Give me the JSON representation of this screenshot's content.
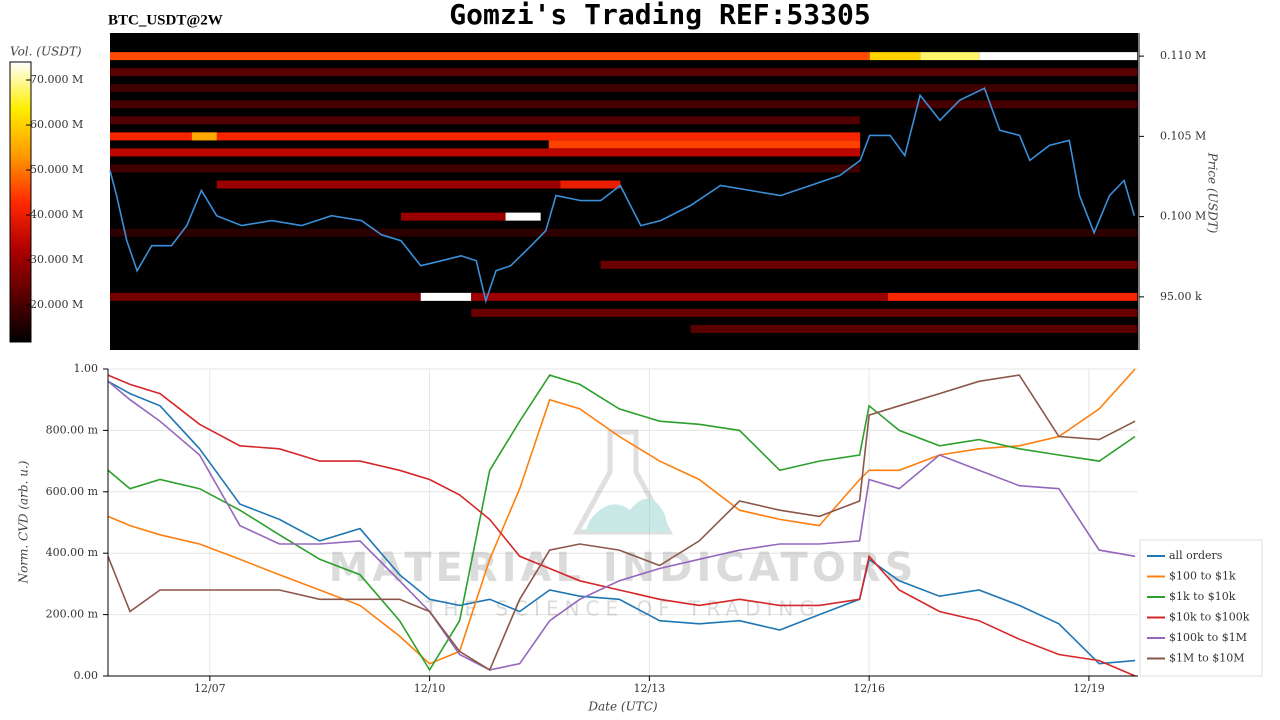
{
  "chart_data": [
    {
      "type": "heatmap",
      "title": "Gomzi's Trading REF:53305",
      "subtitle": "BTC_USDT@2W",
      "ylabel": "Price (USDT)",
      "colorbar_label": "Vol. (USDT)",
      "colormap": [
        "#000000",
        "#5a0000",
        "#b00000",
        "#ff2a00",
        "#ff9a00",
        "#ffee00",
        "#ffffff"
      ],
      "clim": [
        11800000,
        74000000
      ],
      "cticks": [
        {
          "value": 20000000,
          "label": "20.000 M"
        },
        {
          "value": 30000000,
          "label": "30.000 M"
        },
        {
          "value": 40000000,
          "label": "40.000 M"
        },
        {
          "value": 50000000,
          "label": "50.000 M"
        },
        {
          "value": 60000000,
          "label": "60.000 M"
        },
        {
          "value": 70000000,
          "label": "70.000 M"
        }
      ],
      "xlim": [
        5.61,
        19.67
      ],
      "ylim": [
        91690,
        111440
      ],
      "yticks": [
        {
          "value": 95000,
          "label": "95.00 k"
        },
        {
          "value": 100000,
          "label": "0.100 M"
        },
        {
          "value": 105000,
          "label": "0.105 M"
        },
        {
          "value": 110000,
          "label": "0.110 M"
        }
      ],
      "levels": [
        {
          "price": 110000,
          "x0": 5.61,
          "x1": 16.0,
          "volume": 46000000
        },
        {
          "price": 110000,
          "x0": 16.0,
          "x1": 16.69,
          "volume": 60000000
        },
        {
          "price": 110000,
          "x0": 16.69,
          "x1": 17.5,
          "volume": 68000000
        },
        {
          "price": 110000,
          "x0": 17.5,
          "x1": 19.66,
          "volume": 74000000
        },
        {
          "price": 109000,
          "x0": 5.61,
          "x1": 19.66,
          "volume": 22000000
        },
        {
          "price": 108000,
          "x0": 5.61,
          "x1": 19.66,
          "volume": 19000000
        },
        {
          "price": 107000,
          "x0": 5.61,
          "x1": 19.66,
          "volume": 20000000
        },
        {
          "price": 106000,
          "x0": 5.61,
          "x1": 15.87,
          "volume": 21000000
        },
        {
          "price": 105000,
          "x0": 5.61,
          "x1": 15.87,
          "volume": 42000000
        },
        {
          "price": 105000,
          "x0": 6.73,
          "x1": 7.07,
          "volume": 55000000
        },
        {
          "price": 104500,
          "x0": 11.61,
          "x1": 15.87,
          "volume": 45000000
        },
        {
          "price": 104000,
          "x0": 5.61,
          "x1": 15.87,
          "volume": 34000000
        },
        {
          "price": 103000,
          "x0": 5.61,
          "x1": 15.87,
          "volume": 19000000
        },
        {
          "price": 102000,
          "x0": 7.07,
          "x1": 11.77,
          "volume": 30000000
        },
        {
          "price": 102000,
          "x0": 11.77,
          "x1": 12.59,
          "volume": 40000000
        },
        {
          "price": 100000,
          "x0": 9.59,
          "x1": 11.02,
          "volume": 30000000
        },
        {
          "price": 100000,
          "x0": 11.02,
          "x1": 11.5,
          "volume": 74000000
        },
        {
          "price": 99000,
          "x0": 5.61,
          "x1": 19.66,
          "volume": 17000000
        },
        {
          "price": 97000,
          "x0": 12.32,
          "x1": 19.66,
          "volume": 24000000
        },
        {
          "price": 95000,
          "x0": 5.61,
          "x1": 9.86,
          "volume": 25000000
        },
        {
          "price": 95000,
          "x0": 9.86,
          "x1": 10.55,
          "volume": 74000000
        },
        {
          "price": 95000,
          "x0": 10.55,
          "x1": 16.25,
          "volume": 30000000
        },
        {
          "price": 95000,
          "x0": 16.25,
          "x1": 19.66,
          "volume": 42000000
        },
        {
          "price": 94000,
          "x0": 10.55,
          "x1": 19.66,
          "volume": 24000000
        },
        {
          "price": 93000,
          "x0": 13.55,
          "x1": 19.66,
          "volume": 22000000
        }
      ],
      "price_line": {
        "color": "#3a8fd8",
        "x": [
          5.61,
          5.7,
          5.84,
          5.98,
          6.18,
          6.45,
          6.66,
          6.86,
          7.07,
          7.41,
          7.82,
          8.23,
          8.64,
          9.05,
          9.32,
          9.59,
          9.86,
          10.14,
          10.41,
          10.62,
          10.75,
          10.89,
          11.09,
          11.37,
          11.57,
          11.71,
          12.05,
          12.32,
          12.59,
          12.87,
          13.14,
          13.55,
          13.96,
          14.37,
          14.78,
          15.19,
          15.59,
          15.87,
          16.0,
          16.28,
          16.48,
          16.69,
          16.96,
          17.23,
          17.57,
          17.78,
          18.05,
          18.19,
          18.46,
          18.73,
          18.87,
          19.07,
          19.28,
          19.48,
          19.62
        ],
        "values": [
          102875,
          101310,
          98500,
          96625,
          98190,
          98190,
          99440,
          101625,
          100060,
          99440,
          99750,
          99440,
          100060,
          99750,
          98875,
          98500,
          96940,
          97250,
          97560,
          97250,
          94750,
          96625,
          96940,
          98190,
          99125,
          101310,
          101000,
          101000,
          101940,
          99440,
          99750,
          100690,
          101940,
          101625,
          101310,
          101940,
          102560,
          103500,
          105060,
          105060,
          103810,
          107560,
          106000,
          107250,
          108000,
          105375,
          105060,
          103500,
          104440,
          104750,
          101310,
          99000,
          101310,
          102250,
          100060
        ]
      }
    },
    {
      "type": "line",
      "ylabel": "Norm. CVD (arb. u.)",
      "xlabel": "Date (UTC)",
      "xlim": [
        5.61,
        19.67
      ],
      "ylim": [
        0,
        1
      ],
      "xticks": [
        {
          "value": 7,
          "label": "12/07"
        },
        {
          "value": 10,
          "label": "12/10"
        },
        {
          "value": 13,
          "label": "12/13"
        },
        {
          "value": 16,
          "label": "12/16"
        },
        {
          "value": 19,
          "label": "12/19"
        }
      ],
      "yticks": [
        {
          "value": 0,
          "label": "0.00"
        },
        {
          "value": 0.2,
          "label": "200.00 m"
        },
        {
          "value": 0.4,
          "label": "400.00 m"
        },
        {
          "value": 0.6,
          "label": "600.00 m"
        },
        {
          "value": 0.8,
          "label": "800.00 m"
        },
        {
          "value": 1,
          "label": "1.00"
        }
      ],
      "grid": true,
      "legend": "lower right",
      "watermark": [
        "MATERIAL INDICATORS",
        "THE SCIENCE OF TRADING"
      ],
      "x": [
        5.61,
        5.91,
        6.32,
        6.86,
        7.41,
        7.95,
        8.5,
        9.05,
        9.59,
        10.0,
        10.41,
        10.82,
        11.23,
        11.64,
        12.05,
        12.59,
        13.14,
        13.68,
        14.23,
        14.78,
        15.32,
        15.87,
        16.0,
        16.41,
        16.96,
        17.5,
        18.05,
        18.59,
        19.14,
        19.63
      ],
      "series": [
        {
          "name": "all orders",
          "color": "#1f77b4",
          "values": [
            0.96,
            0.92,
            0.88,
            0.74,
            0.56,
            0.51,
            0.44,
            0.48,
            0.33,
            0.25,
            0.23,
            0.25,
            0.21,
            0.28,
            0.26,
            0.25,
            0.18,
            0.17,
            0.18,
            0.15,
            0.2,
            0.25,
            0.38,
            0.31,
            0.26,
            0.28,
            0.23,
            0.17,
            0.04,
            0.05
          ]
        },
        {
          "name": "$100 to $1k",
          "color": "#ff7f0e",
          "values": [
            0.52,
            0.49,
            0.46,
            0.43,
            0.38,
            0.33,
            0.28,
            0.23,
            0.13,
            0.04,
            0.08,
            0.38,
            0.61,
            0.9,
            0.87,
            0.78,
            0.7,
            0.64,
            0.54,
            0.51,
            0.49,
            0.64,
            0.67,
            0.67,
            0.72,
            0.74,
            0.75,
            0.78,
            0.87,
            1.0
          ]
        },
        {
          "name": "$1k to $10k",
          "color": "#2ca02c",
          "values": [
            0.67,
            0.61,
            0.64,
            0.61,
            0.54,
            0.46,
            0.38,
            0.33,
            0.18,
            0.02,
            0.18,
            0.67,
            0.83,
            0.98,
            0.95,
            0.87,
            0.83,
            0.82,
            0.8,
            0.67,
            0.7,
            0.72,
            0.88,
            0.8,
            0.75,
            0.77,
            0.74,
            0.72,
            0.7,
            0.78
          ]
        },
        {
          "name": "$10k to $100k",
          "color": "#d62728",
          "values": [
            0.98,
            0.95,
            0.92,
            0.82,
            0.75,
            0.74,
            0.7,
            0.7,
            0.67,
            0.64,
            0.59,
            0.51,
            0.39,
            0.35,
            0.31,
            0.28,
            0.25,
            0.23,
            0.25,
            0.23,
            0.23,
            0.25,
            0.39,
            0.28,
            0.21,
            0.18,
            0.12,
            0.07,
            0.05,
            0.0
          ]
        },
        {
          "name": "$100k to $1M",
          "color": "#9467bd",
          "values": [
            0.96,
            0.9,
            0.83,
            0.72,
            0.49,
            0.43,
            0.43,
            0.44,
            0.31,
            0.21,
            0.07,
            0.02,
            0.04,
            0.18,
            0.25,
            0.31,
            0.35,
            0.38,
            0.41,
            0.43,
            0.43,
            0.44,
            0.64,
            0.61,
            0.72,
            0.67,
            0.62,
            0.61,
            0.41,
            0.39
          ]
        },
        {
          "name": "$1M to $10M",
          "color": "#8c564b",
          "values": [
            0.39,
            0.21,
            0.28,
            0.28,
            0.28,
            0.28,
            0.25,
            0.25,
            0.25,
            0.21,
            0.08,
            0.02,
            0.25,
            0.41,
            0.43,
            0.41,
            0.36,
            0.44,
            0.57,
            0.54,
            0.52,
            0.57,
            0.85,
            0.88,
            0.92,
            0.96,
            0.98,
            0.78,
            0.77,
            0.83
          ]
        }
      ]
    }
  ]
}
